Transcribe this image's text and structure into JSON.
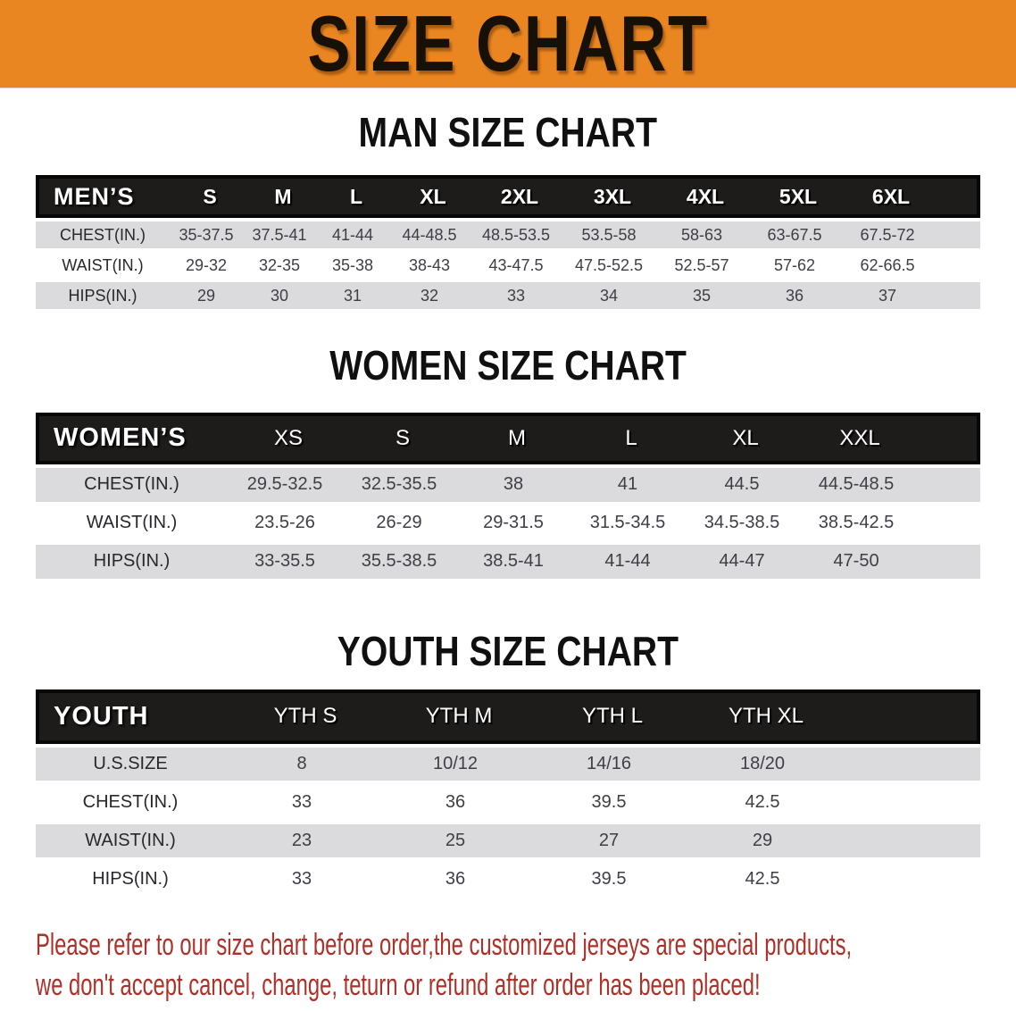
{
  "banner": {
    "title": "SIZE CHART"
  },
  "colors": {
    "banner_bg": "#EA8621",
    "banner_ink": "#161006",
    "title_ink": "#101010",
    "band_bg": "#1E1B1B",
    "row_alt": "#DBDBDD",
    "label_ink": "#28282C",
    "value_ink": "#3E3E45",
    "footer_red": "#AE3129"
  },
  "sections": [
    {
      "id": "men",
      "title": "MAN SIZE CHART",
      "header_label": "MEN’S",
      "columns": [
        "S",
        "M",
        "L",
        "XL",
        "2XL",
        "3XL",
        "4XL",
        "5XL",
        "6XL"
      ],
      "rows": [
        {
          "label": "CHEST(IN.)",
          "values": [
            "35-37.5",
            "37.5-41",
            "41-44",
            "44-48.5",
            "48.5-53.5",
            "53.5-58",
            "58-63",
            "63-67.5",
            "67.5-72"
          ]
        },
        {
          "label": "WAIST(IN.)",
          "values": [
            "29-32",
            "32-35",
            "35-38",
            "38-43",
            "43-47.5",
            "47.5-52.5",
            "52.5-57",
            "57-62",
            "62-66.5"
          ]
        },
        {
          "label": "HIPS(IN.)",
          "values": [
            "29",
            "30",
            "31",
            "32",
            "33",
            "34",
            "35",
            "36",
            "37"
          ]
        }
      ]
    },
    {
      "id": "women",
      "title": "WOMEN SIZE CHART",
      "header_label": "WOMEN’S",
      "columns": [
        "XS",
        "S",
        "M",
        "L",
        "XL",
        "XXL"
      ],
      "rows": [
        {
          "label": "CHEST(IN.)",
          "values": [
            "29.5-32.5",
            "32.5-35.5",
            "38",
            "41",
            "44.5",
            "44.5-48.5"
          ]
        },
        {
          "label": "WAIST(IN.)",
          "values": [
            "23.5-26",
            "26-29",
            "29-31.5",
            "31.5-34.5",
            "34.5-38.5",
            "38.5-42.5"
          ]
        },
        {
          "label": "HIPS(IN.)",
          "values": [
            "33-35.5",
            "35.5-38.5",
            "38.5-41",
            "41-44",
            "44-47",
            "47-50"
          ]
        }
      ]
    },
    {
      "id": "youth",
      "title": "YOUTH SIZE CHART",
      "header_label": "YOUTH",
      "columns": [
        "YTH S",
        "YTH M",
        "YTH L",
        "YTH XL"
      ],
      "rows": [
        {
          "label": "U.S.SIZE",
          "values": [
            "8",
            "10/12",
            "14/16",
            "18/20"
          ]
        },
        {
          "label": "CHEST(IN.)",
          "values": [
            "33",
            "36",
            "39.5",
            "42.5"
          ]
        },
        {
          "label": "WAIST(IN.)",
          "values": [
            "23",
            "25",
            "27",
            "29"
          ]
        },
        {
          "label": "HIPS(IN.)",
          "values": [
            "33",
            "36",
            "39.5",
            "42.5"
          ]
        }
      ]
    }
  ],
  "footer": {
    "line1": "Please refer to our size chart before order,the customized jerseys are special products,",
    "line2": "we don't accept cancel, change, teturn or refund after order has been placed!"
  }
}
